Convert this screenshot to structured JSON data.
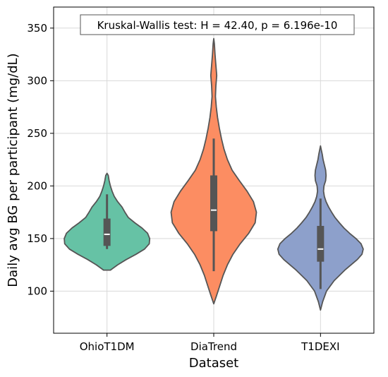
{
  "chart_data": {
    "type": "violin",
    "xlabel": "Dataset",
    "ylabel": "Daily avg BG per participant (mg/dL)",
    "categories": [
      "OhioT1DM",
      "DiaTrend",
      "T1DEXI"
    ],
    "ylim": [
      60,
      370
    ],
    "yticks": [
      100,
      150,
      200,
      250,
      300,
      350
    ],
    "grid": true,
    "annotation": "Kruskal-Wallis test: H = 42.40, p = 6.196e-10",
    "colors": [
      "#66c2a5",
      "#fc8d62",
      "#8da0cb"
    ],
    "violins": [
      {
        "category": "OhioT1DM",
        "color": "#66c2a5",
        "min": 140,
        "q1": 143,
        "median": 154,
        "q3": 169,
        "max": 192,
        "kde": [
          [
            120,
            0.08
          ],
          [
            125,
            0.25
          ],
          [
            130,
            0.45
          ],
          [
            135,
            0.68
          ],
          [
            140,
            0.88
          ],
          [
            145,
            0.99
          ],
          [
            150,
            1.0
          ],
          [
            155,
            0.95
          ],
          [
            160,
            0.82
          ],
          [
            165,
            0.65
          ],
          [
            170,
            0.5
          ],
          [
            175,
            0.42
          ],
          [
            180,
            0.35
          ],
          [
            185,
            0.25
          ],
          [
            190,
            0.17
          ],
          [
            195,
            0.12
          ],
          [
            200,
            0.08
          ],
          [
            205,
            0.05
          ],
          [
            210,
            0.03
          ],
          [
            212,
            0.0
          ]
        ]
      },
      {
        "category": "DiaTrend",
        "color": "#fc8d62",
        "min": 119,
        "q1": 157,
        "median": 177,
        "q3": 210,
        "max": 245,
        "kde": [
          [
            88,
            0.0
          ],
          [
            95,
            0.06
          ],
          [
            105,
            0.14
          ],
          [
            115,
            0.22
          ],
          [
            125,
            0.32
          ],
          [
            135,
            0.45
          ],
          [
            145,
            0.62
          ],
          [
            155,
            0.82
          ],
          [
            165,
            0.97
          ],
          [
            175,
            1.0
          ],
          [
            185,
            0.93
          ],
          [
            195,
            0.78
          ],
          [
            205,
            0.6
          ],
          [
            215,
            0.43
          ],
          [
            225,
            0.32
          ],
          [
            235,
            0.24
          ],
          [
            245,
            0.18
          ],
          [
            255,
            0.13
          ],
          [
            265,
            0.09
          ],
          [
            275,
            0.06
          ],
          [
            285,
            0.04
          ],
          [
            295,
            0.05
          ],
          [
            305,
            0.07
          ],
          [
            315,
            0.05
          ],
          [
            325,
            0.03
          ],
          [
            335,
            0.015
          ],
          [
            340,
            0.0
          ]
        ]
      },
      {
        "category": "T1DEXI",
        "color": "#8da0cb",
        "min": 102,
        "q1": 128,
        "median": 140,
        "q3": 162,
        "max": 188,
        "kde": [
          [
            82,
            0.0
          ],
          [
            90,
            0.05
          ],
          [
            100,
            0.14
          ],
          [
            110,
            0.32
          ],
          [
            120,
            0.57
          ],
          [
            130,
            0.86
          ],
          [
            135,
            0.97
          ],
          [
            140,
            1.0
          ],
          [
            145,
            0.95
          ],
          [
            150,
            0.83
          ],
          [
            155,
            0.68
          ],
          [
            160,
            0.55
          ],
          [
            165,
            0.44
          ],
          [
            170,
            0.34
          ],
          [
            175,
            0.26
          ],
          [
            180,
            0.19
          ],
          [
            185,
            0.13
          ],
          [
            190,
            0.09
          ],
          [
            195,
            0.07
          ],
          [
            200,
            0.08
          ],
          [
            205,
            0.12
          ],
          [
            210,
            0.13
          ],
          [
            215,
            0.12
          ],
          [
            220,
            0.09
          ],
          [
            225,
            0.06
          ],
          [
            230,
            0.04
          ],
          [
            235,
            0.015
          ],
          [
            238,
            0.0
          ]
        ]
      }
    ]
  }
}
